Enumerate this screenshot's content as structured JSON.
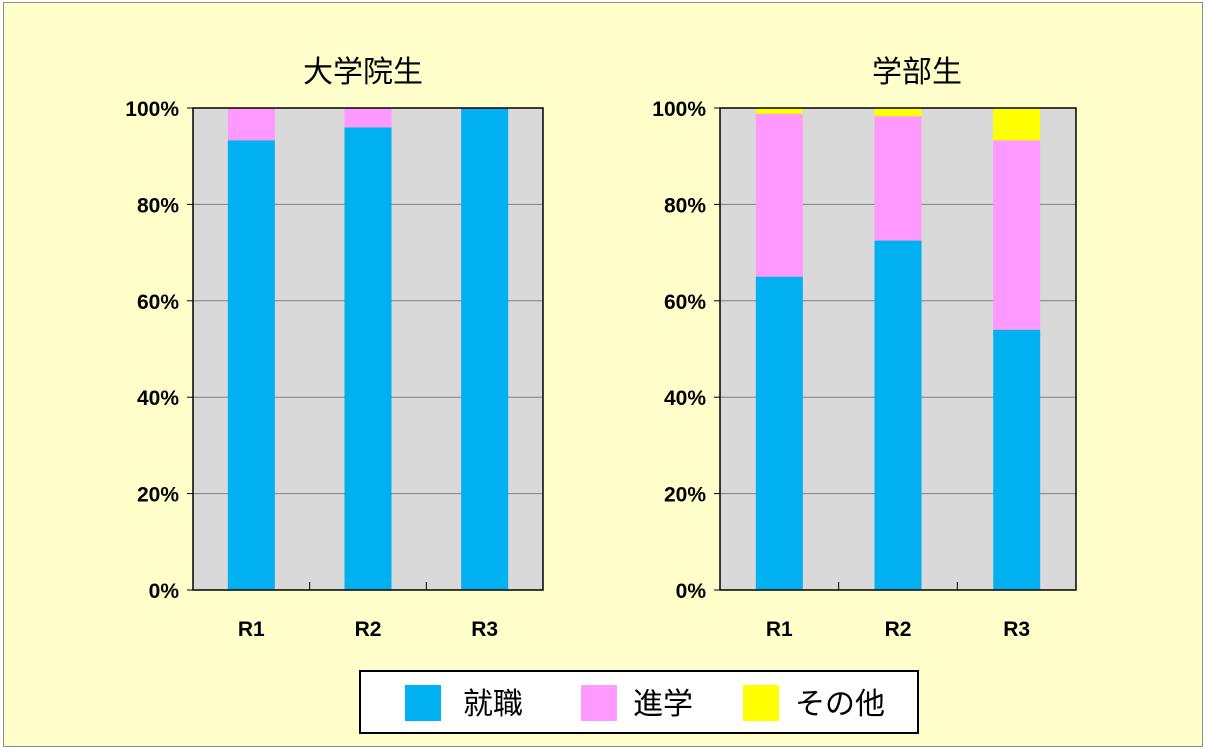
{
  "chart_data": [
    {
      "type": "bar",
      "stacked": true,
      "percent": true,
      "title": "大学院生",
      "categories": [
        "R1",
        "R2",
        "R3"
      ],
      "series": [
        {
          "name": "就職",
          "values": [
            93.3,
            96.0,
            100.0
          ]
        },
        {
          "name": "進学",
          "values": [
            6.7,
            4.0,
            0.0
          ]
        },
        {
          "name": "その他",
          "values": [
            0.0,
            0.0,
            0.0
          ]
        }
      ],
      "ylim": [
        0,
        100
      ],
      "yticks": [
        "0%",
        "20%",
        "40%",
        "60%",
        "80%",
        "100%"
      ],
      "grid": true
    },
    {
      "type": "bar",
      "stacked": true,
      "percent": true,
      "title": "学部生",
      "categories": [
        "R1",
        "R2",
        "R3"
      ],
      "series": [
        {
          "name": "就職",
          "values": [
            65.0,
            72.5,
            54.0
          ]
        },
        {
          "name": "進学",
          "values": [
            33.8,
            25.8,
            39.3
          ]
        },
        {
          "name": "その他",
          "values": [
            1.2,
            1.7,
            6.7
          ]
        }
      ],
      "ylim": [
        0,
        100
      ],
      "yticks": [
        "0%",
        "20%",
        "40%",
        "60%",
        "80%",
        "100%"
      ],
      "grid": true
    }
  ],
  "legend": {
    "placement": "bottom",
    "items": [
      {
        "label": "就職",
        "color": "#00b0f0"
      },
      {
        "label": "進学",
        "color": "#ff99ff"
      },
      {
        "label": "その他",
        "color": "#ffff00"
      }
    ]
  },
  "colors": {
    "background": "#ffffcc",
    "plot_area": "#d9d9d9",
    "gridline": "#808080"
  }
}
